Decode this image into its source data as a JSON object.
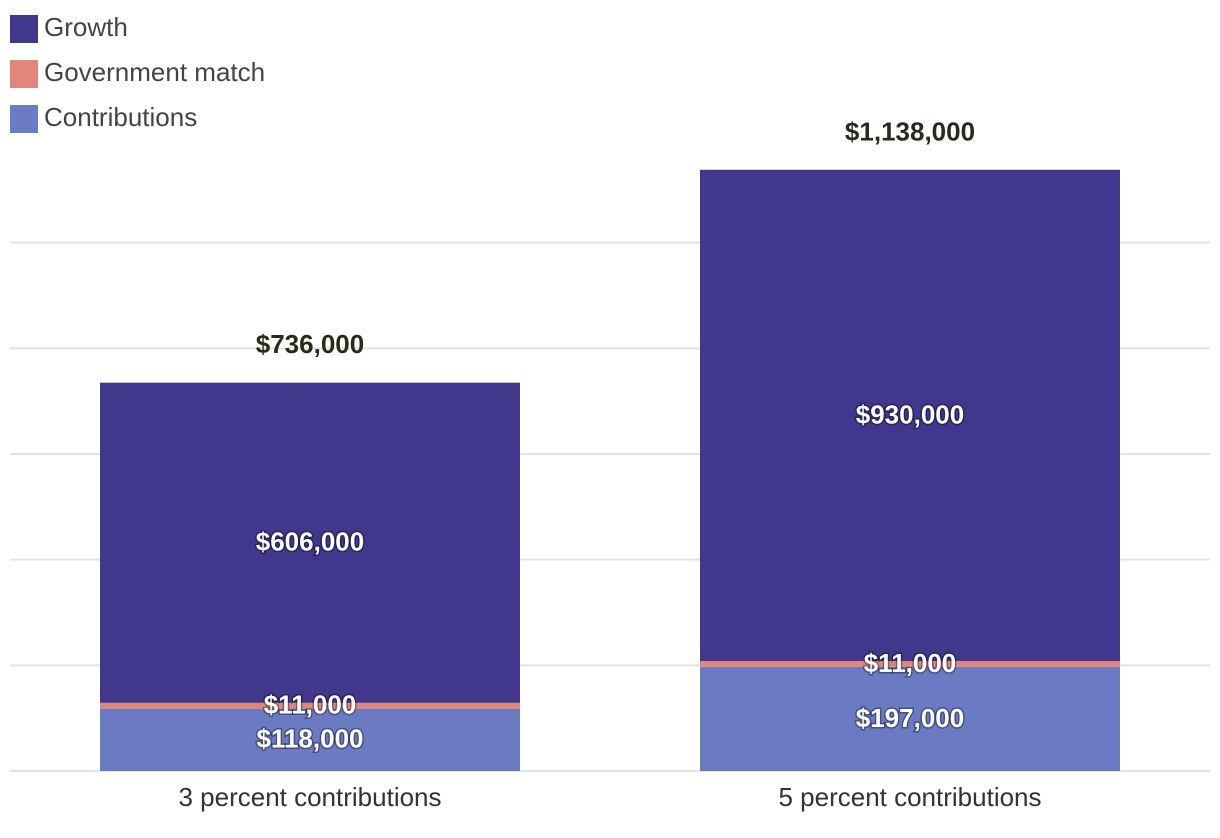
{
  "chart_data": {
    "type": "stacked_bar",
    "categories": [
      "3 percent contributions",
      "5 percent contributions"
    ],
    "series": [
      {
        "name": "Contributions",
        "color": "#6a7bc4",
        "values": [
          118000,
          197000
        ],
        "value_labels": [
          "$118,000",
          "$197,000"
        ]
      },
      {
        "name": "Government match",
        "color": "#e0877a",
        "values": [
          11000,
          11000
        ],
        "value_labels": [
          "$11,000",
          "$11,000"
        ]
      },
      {
        "name": "Growth",
        "color": "#41378c",
        "values": [
          606000,
          930000
        ],
        "value_labels": [
          "$606,000",
          "$930,000"
        ]
      }
    ],
    "totals": {
      "values": [
        736000,
        1138000
      ],
      "value_labels": [
        "$736,000",
        "$1,138,000"
      ]
    },
    "ylim": [
      0,
      1200000
    ],
    "yticks": [
      0,
      200000,
      400000,
      600000,
      800000,
      1000000
    ],
    "grid": true
  }
}
